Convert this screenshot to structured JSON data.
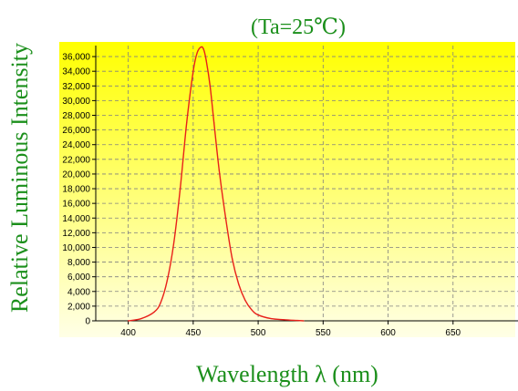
{
  "chart_data": {
    "type": "line",
    "title": "(Ta=25℃)",
    "xlabel": "Wavelength λ (nm)",
    "ylabel": "Relative Luminous Intensity",
    "xlim": [
      375,
      700
    ],
    "ylim": [
      0,
      37500
    ],
    "x_ticks": [
      400,
      450,
      500,
      550,
      600,
      650
    ],
    "x_tick_labels": [
      "400",
      "450",
      "500",
      "550",
      "600",
      "650"
    ],
    "y_ticks": [
      0,
      2000,
      4000,
      6000,
      8000,
      10000,
      12000,
      14000,
      16000,
      18000,
      20000,
      22000,
      24000,
      26000,
      28000,
      30000,
      32000,
      34000,
      36000
    ],
    "y_tick_labels": [
      "0",
      "2,000",
      "4,000",
      "6,000",
      "8,000",
      "10,000",
      "12,000",
      "14,000",
      "16,000",
      "18,000",
      "20,000",
      "22,000",
      "24,000",
      "26,000",
      "28,000",
      "30,000",
      "32,000",
      "34,000",
      "36,000"
    ],
    "grid": true,
    "series": [
      {
        "color": "#e8201a",
        "x": [
          400,
          410,
          420,
          425,
          430,
          435,
          440,
          445,
          450,
          453,
          456,
          458,
          460,
          463,
          466,
          470,
          475,
          480,
          485,
          490,
          495,
          500,
          510,
          520,
          530,
          535
        ],
        "y": [
          0,
          300,
          1200,
          2500,
          5500,
          10500,
          18000,
          27000,
          34000,
          36500,
          37300,
          37000,
          35500,
          32000,
          27000,
          20500,
          14000,
          8500,
          5000,
          2800,
          1500,
          800,
          300,
          150,
          50,
          0
        ]
      }
    ],
    "colors": {
      "title": "#1b8f1b",
      "labels": "#1b8f1b",
      "plot_top": "#ffff00",
      "plot_bottom": "#ffffe0",
      "line": "#e8201a",
      "grid": "#808080"
    }
  }
}
